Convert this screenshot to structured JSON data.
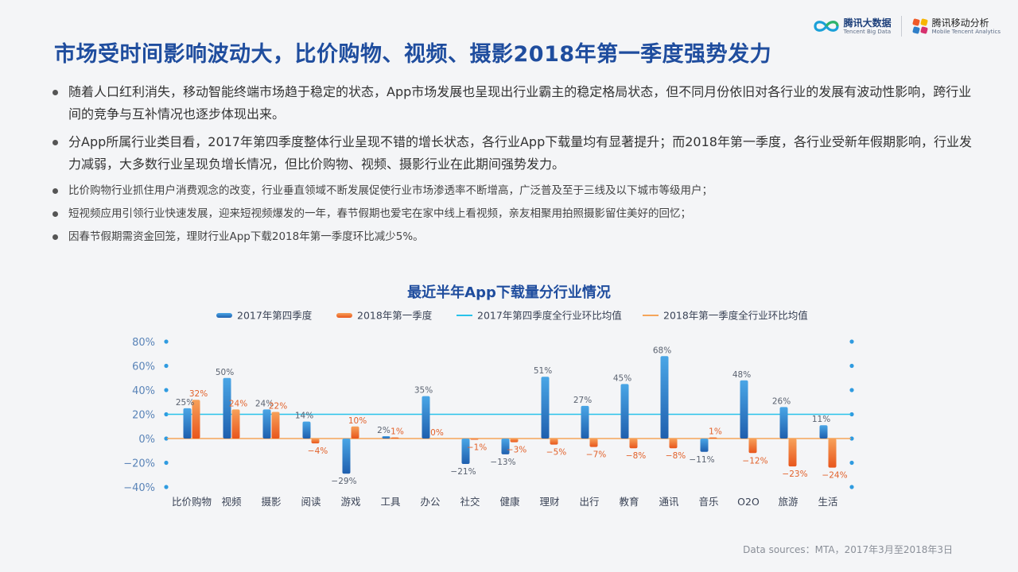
{
  "header": {
    "logo1": {
      "name": "腾讯大数据",
      "sub": "Tencent Big Data",
      "icon": "infinity-logo-icon"
    },
    "logo2": {
      "name": "腾讯移动分析",
      "sub": "Mobile Tencent Analytics",
      "icon": "pinwheel-logo-icon"
    }
  },
  "title": "市场受时间影响波动大，比价购物、视频、摄影2018年第一季度强势发力",
  "bullets_major": [
    "随着人口红利消失，移动智能终端市场趋于稳定的状态，App市场发展也呈现出行业霸主的稳定格局状态，但不同月份依旧对各行业的发展有波动性影响，跨行业间的竞争与互补情况也逐步体现出来。",
    "分App所属行业类目看，2017年第四季度整体行业呈现不错的增长状态，各行业App下载量均有显著提升；而2018年第一季度，各行业受新年假期影响，行业发力减弱，大多数行业呈现负增长情况，但比价购物、视频、摄影行业在此期间强势发力。"
  ],
  "bullets_minor": [
    "比价购物行业抓住用户消费观念的改变，行业垂直领域不断发展促使行业市场渗透率不断增高，广泛普及至于三线及以下城市等级用户；",
    "短视频应用引领行业快速发展，迎来短视频爆发的一年，春节假期也爱宅在家中线上看视频，亲友相聚用拍照摄影留住美好的回忆；",
    "因春节假期需资金回笼，理财行业App下载2018年第一季度环比减少5%。"
  ],
  "source": "Data sources：MTA，2017年3月至2018年3日",
  "chart_data": {
    "type": "bar",
    "title": "最近半年App下载量分行业情况",
    "categories": [
      "比价购物",
      "视频",
      "摄影",
      "阅读",
      "游戏",
      "工具",
      "办公",
      "社交",
      "健康",
      "理财",
      "出行",
      "教育",
      "通讯",
      "音乐",
      "O2O",
      "旅游",
      "生活"
    ],
    "series": [
      {
        "name": "2017年第四季度",
        "color": "#2f7fc8",
        "values": [
          25,
          50,
          24,
          14,
          -29,
          2,
          35,
          -21,
          -13,
          51,
          27,
          45,
          68,
          -11,
          48,
          26,
          11
        ],
        "labels": [
          "25%",
          "50%",
          "24%",
          "14%",
          "−29%",
          "2%",
          "35%",
          "−21%",
          "−13%",
          "51%",
          "27%",
          "45%",
          "68%",
          "−11%",
          "48%",
          "26%",
          "11%"
        ]
      },
      {
        "name": "2018年第一季度",
        "color": "#f0752c",
        "values": [
          32,
          24,
          22,
          -4,
          10,
          1,
          0,
          -1,
          -3,
          -5,
          -7,
          -8,
          -8,
          1,
          -12,
          -23,
          -24
        ],
        "labels": [
          "32%",
          "24%",
          "22%",
          "−4%",
          "10%",
          "1%",
          "0%",
          "−1%",
          "−3%",
          "−5%",
          "−7%",
          "−8%",
          "−8%",
          "1%",
          "−12%",
          "−23%",
          "−24%"
        ]
      }
    ],
    "reference_lines": [
      {
        "name": "2017年第四季度全行业环比均值",
        "value": 20,
        "color": "#29c3ea"
      },
      {
        "name": "2018年第一季度全行业环比均值",
        "value": 0,
        "color": "#f5a55a"
      }
    ],
    "y_ticks": [
      "80%",
      "60%",
      "40%",
      "20%",
      "0%",
      "−20%",
      "−40%"
    ],
    "y_tick_values": [
      80,
      60,
      40,
      20,
      0,
      -20,
      -40
    ],
    "ylim": [
      -40,
      80
    ],
    "legend_position": "top",
    "label_color": "#5a6270",
    "tick_color": "#5a84b8"
  }
}
